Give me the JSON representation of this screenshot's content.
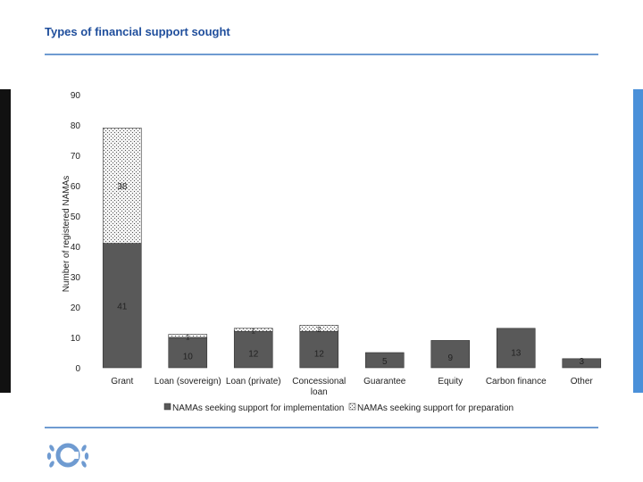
{
  "page": {
    "title": "Types of financial support sought"
  },
  "logo": {
    "name": "unfccc-logo"
  },
  "chart_data": {
    "type": "bar",
    "stacked": true,
    "ylabel": "Number of registered NAMAs",
    "ylim": [
      0,
      90
    ],
    "yticks": [
      0,
      10,
      20,
      30,
      40,
      50,
      60,
      70,
      80,
      90
    ],
    "categories": [
      "Grant",
      "Loan (sovereign)",
      "Loan (private)",
      "Concessional loan",
      "Guarantee",
      "Equity",
      "Carbon finance",
      "Other"
    ],
    "series": [
      {
        "name": "NAMAs seeking support for implementation",
        "values": [
          41,
          10,
          12,
          12,
          5,
          9,
          13,
          3
        ],
        "color": "#595959"
      },
      {
        "name": "NAMAs seeking support for preparation",
        "values": [
          38,
          1,
          1,
          2,
          0,
          0,
          0,
          0
        ],
        "color": "#f2f2f2"
      }
    ],
    "label_values": {
      "implementation": [
        "41",
        "10",
        "12",
        "12",
        "5",
        "9",
        "13",
        "3"
      ],
      "preparation": [
        "38",
        "1",
        "1",
        "2",
        "",
        "",
        "",
        ""
      ]
    },
    "legend_position": "bottom"
  }
}
